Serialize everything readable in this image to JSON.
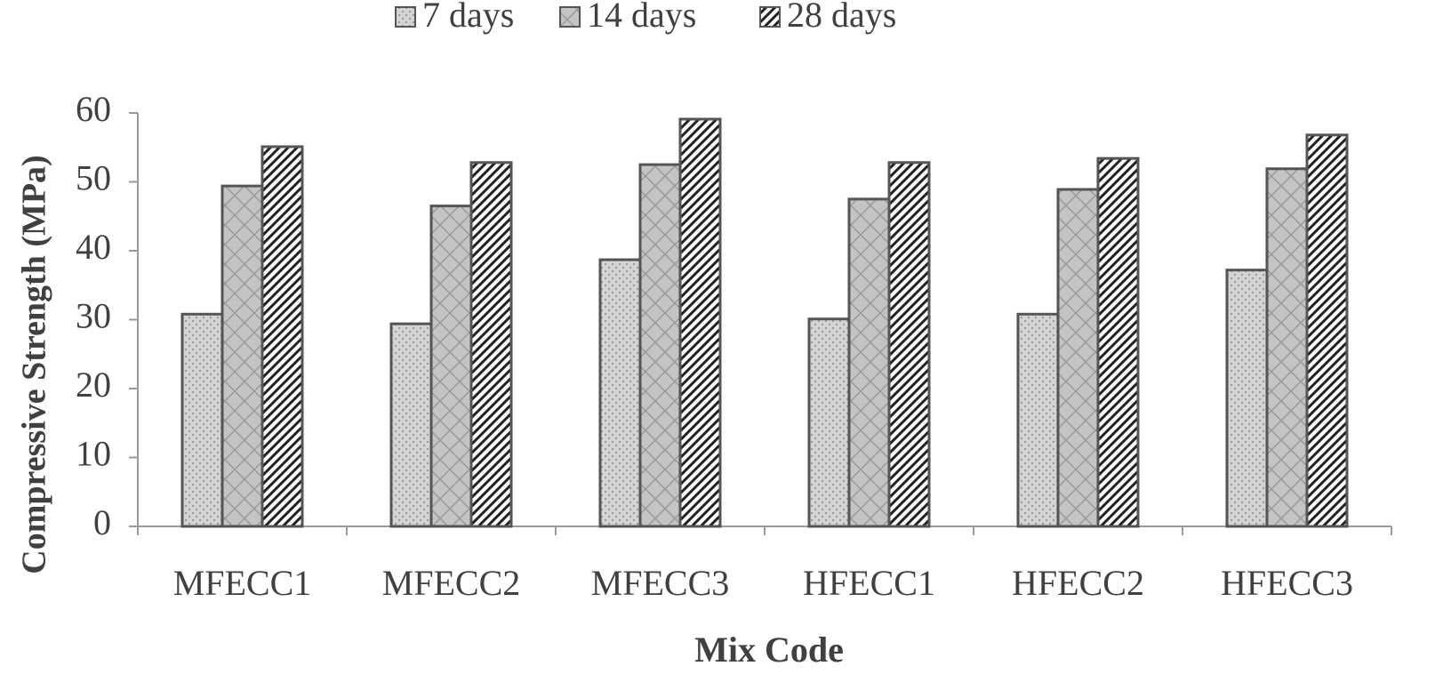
{
  "chart_data": {
    "type": "bar",
    "legend": "top",
    "x_label": "Mix Code",
    "y_label": "Compressive Strength (MPa)",
    "categories": [
      "MFECC1",
      "MFECC2",
      "MFECC3",
      "HFECC1",
      "HFECC2",
      "HFECC3"
    ],
    "series": [
      {
        "name": "7 days",
        "color": "#c8c8c8",
        "values": [
          30.8,
          29.4,
          38.7,
          30.1,
          30.8,
          37.2
        ]
      },
      {
        "name": "14 days",
        "color": "#bdbdbd",
        "values": [
          49.4,
          46.5,
          52.5,
          47.5,
          48.9,
          51.9
        ]
      },
      {
        "name": "28 days",
        "color": "#4a4a4a",
        "values": [
          55.1,
          52.8,
          59.1,
          52.8,
          53.4,
          56.8
        ]
      }
    ],
    "ylim": [
      0,
      60
    ],
    "yticks": [
      0,
      10,
      20,
      30,
      40,
      50,
      60
    ]
  }
}
